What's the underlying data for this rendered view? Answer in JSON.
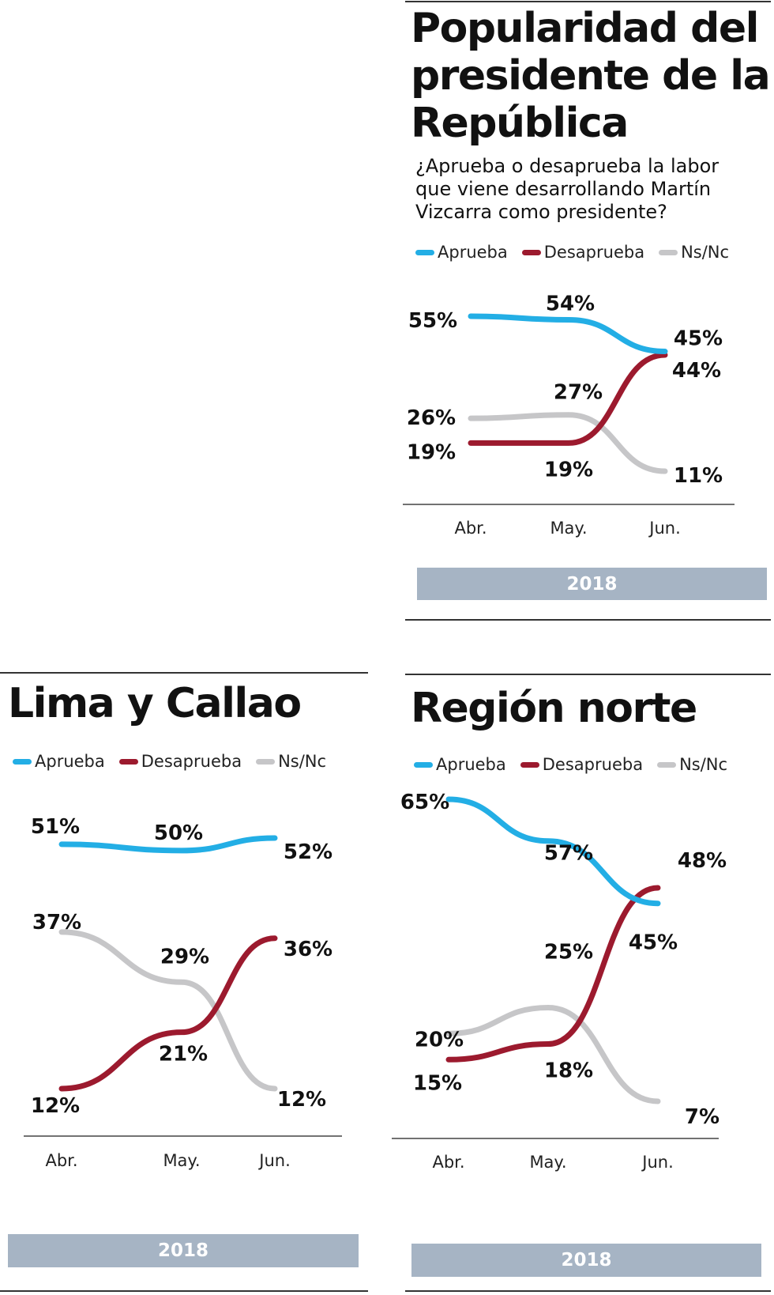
{
  "colors": {
    "aprueba": "#23aee5",
    "desaprueba": "#9c1a2e",
    "nsnc": "#c6c6c8",
    "year_bar": "#a6b4c4"
  },
  "legend": [
    "Aprueba",
    "Desaprueba",
    "Ns/Nc"
  ],
  "panels": [
    {
      "title": [
        "Popularidad del",
        "presidente de la",
        "República"
      ],
      "subtitle": [
        "¿Aprueba o desaprueba la labor",
        "que viene desarrollando Martín",
        "Vizcarra como presidente?"
      ],
      "year": "2018"
    },
    {
      "title": [
        "Lima y Callao"
      ],
      "year": "2018"
    },
    {
      "title": [
        "Región norte"
      ],
      "year": "2018"
    }
  ],
  "chart_data": [
    {
      "type": "line",
      "title": "Popularidad del presidente de la República",
      "subtitle": "¿Aprueba o desaprueba la labor que viene desarrollando Martín Vizcarra como presidente?",
      "categories": [
        "Abr.",
        "May.",
        "Jun."
      ],
      "year": "2018",
      "series": [
        {
          "name": "Aprueba",
          "color": "#23aee5",
          "values": [
            55,
            54,
            45
          ],
          "labels": [
            "55%",
            "54%",
            "45%"
          ]
        },
        {
          "name": "Desaprueba",
          "color": "#9c1a2e",
          "values": [
            19,
            19,
            44
          ],
          "labels": [
            "19%",
            "19%",
            "44%"
          ]
        },
        {
          "name": "Ns/Nc",
          "color": "#c6c6c8",
          "values": [
            26,
            27,
            11
          ],
          "labels": [
            "26%",
            "27%",
            "11%"
          ]
        }
      ],
      "legend_placement": "top",
      "grid": false
    },
    {
      "type": "line",
      "title": "Lima y Callao",
      "categories": [
        "Abr.",
        "May.",
        "Jun."
      ],
      "year": "2018",
      "series": [
        {
          "name": "Aprueba",
          "color": "#23aee5",
          "values": [
            51,
            50,
            52
          ],
          "labels": [
            "51%",
            "50%",
            "52%"
          ]
        },
        {
          "name": "Desaprueba",
          "color": "#9c1a2e",
          "values": [
            12,
            21,
            36
          ],
          "labels": [
            "12%",
            "21%",
            "36%"
          ]
        },
        {
          "name": "Ns/Nc",
          "color": "#c6c6c8",
          "values": [
            37,
            29,
            12
          ],
          "labels": [
            "37%",
            "29%",
            "12%"
          ]
        }
      ],
      "legend_placement": "top",
      "grid": false
    },
    {
      "type": "line",
      "title": "Región norte",
      "categories": [
        "Abr.",
        "May.",
        "Jun."
      ],
      "year": "2018",
      "series": [
        {
          "name": "Aprueba",
          "color": "#23aee5",
          "values": [
            65,
            57,
            45
          ],
          "labels": [
            "65%",
            "57%",
            "45%"
          ]
        },
        {
          "name": "Desaprueba",
          "color": "#9c1a2e",
          "values": [
            15,
            18,
            48
          ],
          "labels": [
            "15%",
            "18%",
            "48%"
          ]
        },
        {
          "name": "Ns/Nc",
          "color": "#c6c6c8",
          "values": [
            20,
            25,
            7
          ],
          "labels": [
            "20%",
            "25%",
            "7%"
          ]
        }
      ],
      "legend_placement": "top",
      "grid": false
    }
  ]
}
